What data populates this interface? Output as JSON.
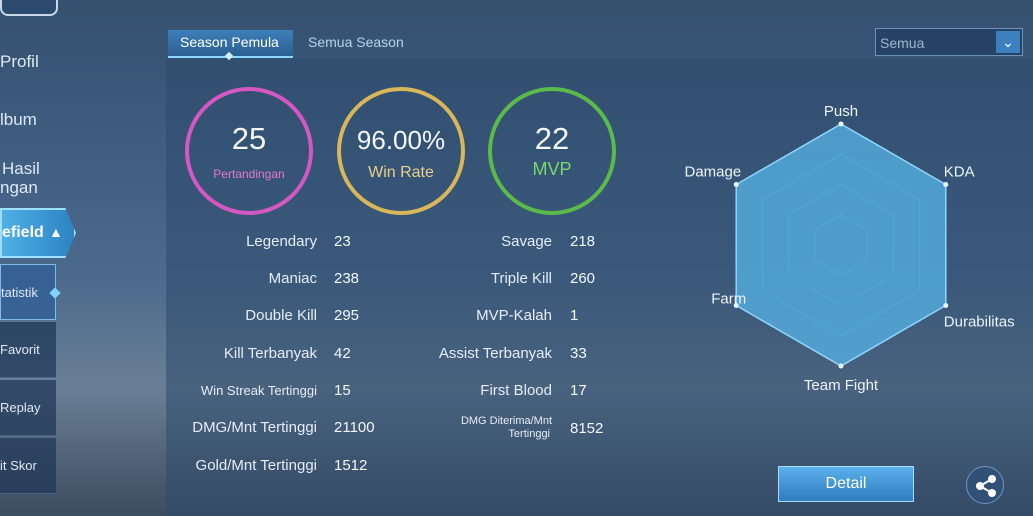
{
  "sidebar": {
    "items": [
      {
        "label": "Profil"
      },
      {
        "label": "lbum"
      },
      {
        "label_line1": "Hasil",
        "label_line2": "ngan"
      },
      {
        "label": "efield"
      }
    ],
    "sub_items": [
      {
        "label": "tatistik"
      },
      {
        "label": "Favorit"
      },
      {
        "label": "Replay"
      },
      {
        "label": "it Skor"
      }
    ]
  },
  "tabs": [
    {
      "label": "Season Pemula",
      "active": true
    },
    {
      "label": "Semua Season",
      "active": false
    }
  ],
  "dropdown": {
    "value": "Semua"
  },
  "summary": {
    "matches": {
      "value": "25",
      "label": "Pertandingan"
    },
    "winrate": {
      "value": "96.00%",
      "label": "Win Rate"
    },
    "mvp": {
      "value": "22",
      "label": "MVP"
    }
  },
  "stats_left": [
    {
      "label": "Legendary",
      "value": "23"
    },
    {
      "label": "Maniac",
      "value": "238"
    },
    {
      "label": "Double Kill",
      "value": "295"
    },
    {
      "label": "Kill Terbanyak",
      "value": "42"
    },
    {
      "label": "Win Streak Tertinggi",
      "value": "15"
    },
    {
      "label": "DMG/Mnt Tertinggi",
      "value": "21100"
    },
    {
      "label": "Gold/Mnt Tertinggi",
      "value": "1512"
    }
  ],
  "stats_right": [
    {
      "label": "Savage",
      "value": "218"
    },
    {
      "label": "Triple Kill",
      "value": "260"
    },
    {
      "label": "MVP-Kalah",
      "value": "1"
    },
    {
      "label": "Assist Terbanyak",
      "value": "33"
    },
    {
      "label": "First Blood",
      "value": "17"
    },
    {
      "label_line1": "DMG Diterima/Mnt",
      "label_line2": "Tertinggi",
      "value": "8152"
    }
  ],
  "radar": {
    "axes": [
      "Push",
      "KDA",
      "Durabilitas",
      "Team Fight",
      "Farm",
      "Damage"
    ],
    "values": [
      1,
      1,
      1,
      1,
      1,
      1
    ]
  },
  "buttons": {
    "detail": "Detail"
  },
  "icons": {
    "share": "share-icon",
    "dropdown": "chevron-down-icon",
    "expand": "chevron-up-icon"
  },
  "colors": {
    "matches": "#d557c2",
    "winrate": "#d8b65a",
    "mvp": "#5cba4a",
    "accent": "#4fb0e6"
  }
}
